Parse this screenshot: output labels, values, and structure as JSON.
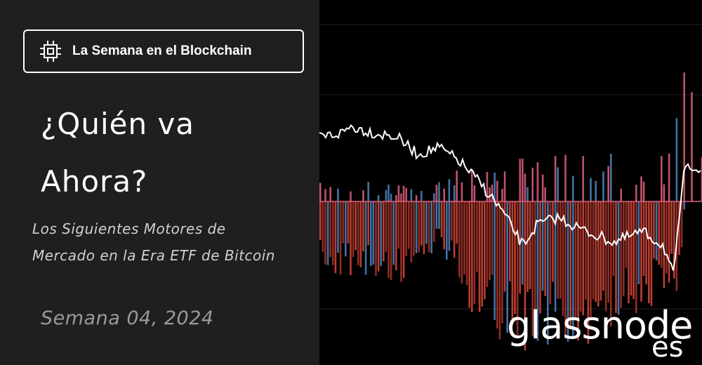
{
  "badge": "La Semana en el Blockchain",
  "title": [
    "¿Quién va",
    "Ahora?"
  ],
  "subtitle": [
    "Los Siguientes Motores de",
    "Mercado en la Era ETF de Bitcoin"
  ],
  "week": "Semana 04, 2024",
  "logo": {
    "name": "glassnode",
    "region": "es"
  }
}
